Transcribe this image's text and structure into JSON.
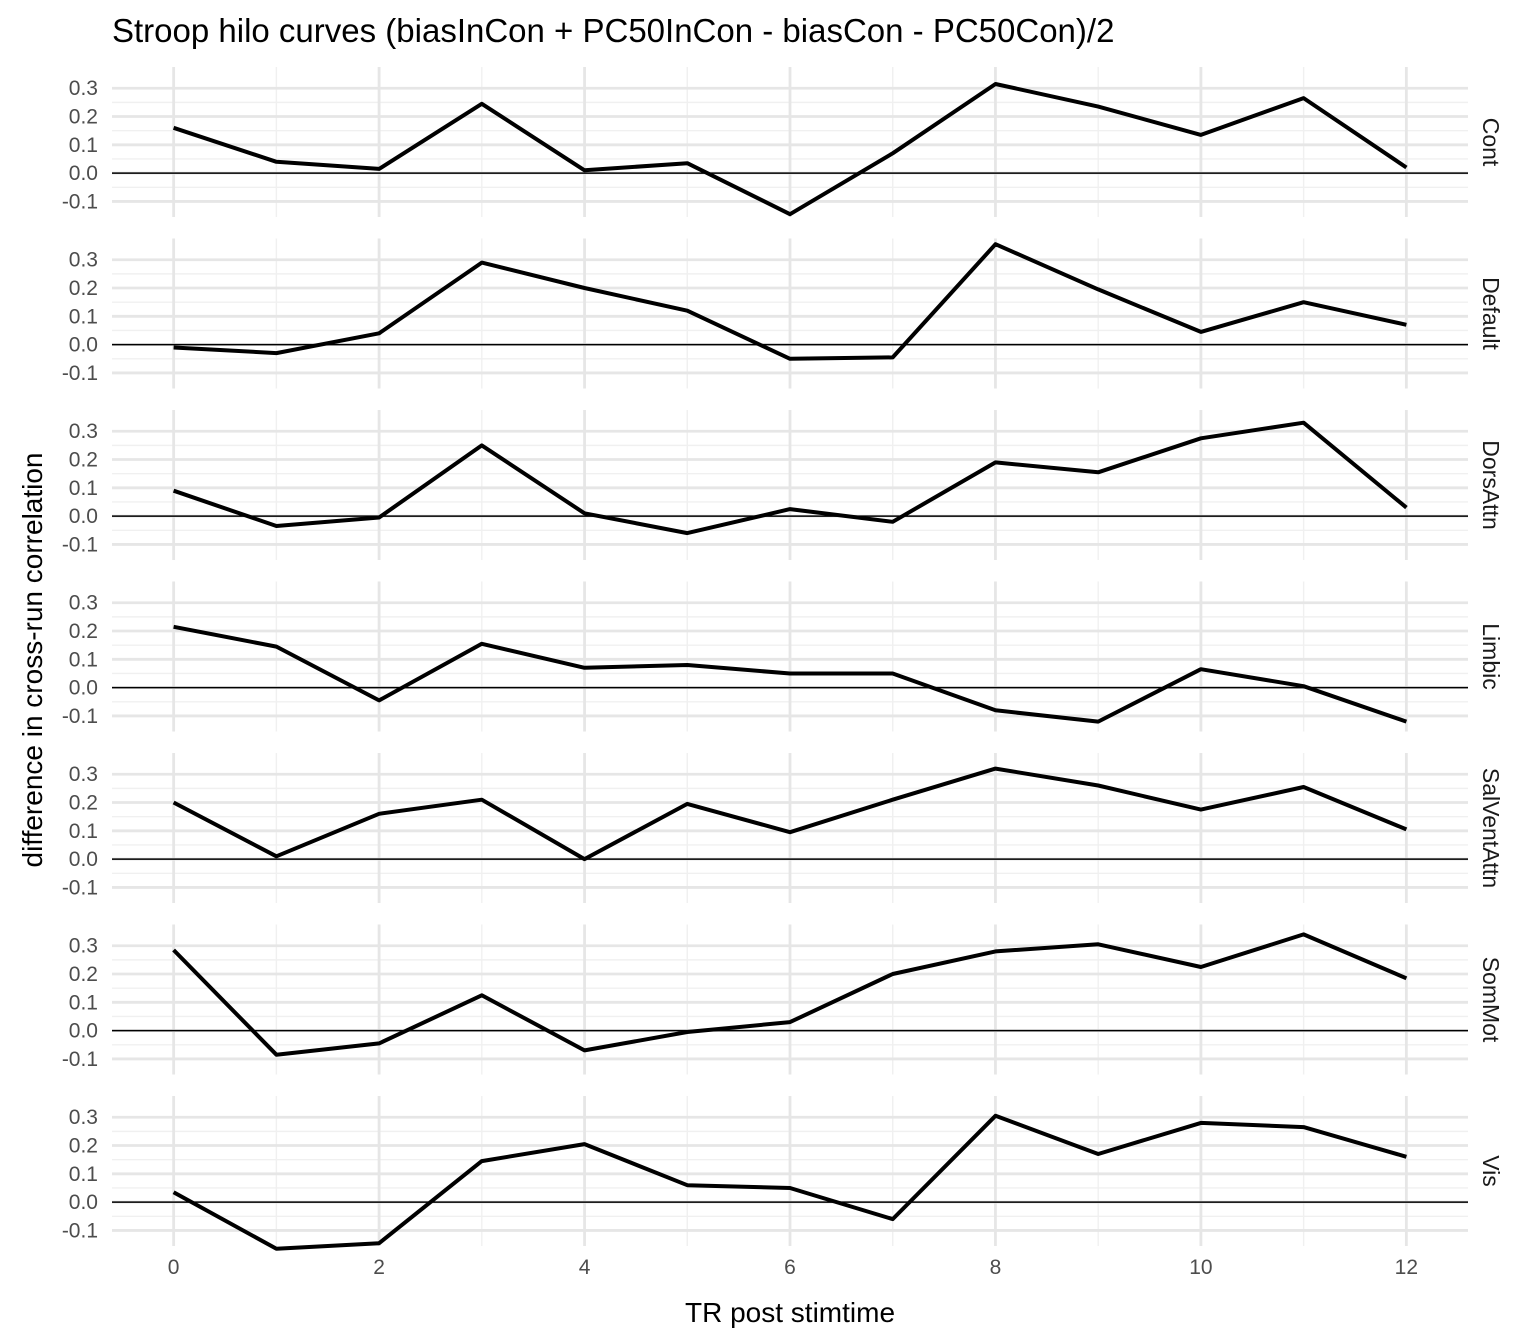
{
  "chart_data": {
    "type": "line",
    "title": "Stroop hilo curves (biasInCon + PC50InCon - biasCon - PC50Con)/2",
    "xlabel": "TR post stimtime",
    "ylabel": "difference in cross-run correlation",
    "x": [
      0,
      1,
      2,
      3,
      4,
      5,
      6,
      7,
      8,
      9,
      10,
      11,
      12
    ],
    "xlim": [
      -0.6,
      12.6
    ],
    "x_ticks": [
      "0",
      "2",
      "4",
      "6",
      "8",
      "10",
      "12"
    ],
    "x_tick_values": [
      0,
      2,
      4,
      6,
      8,
      10,
      12
    ],
    "ylim": [
      -0.155,
      0.375
    ],
    "y_ticks": [
      "-0.1",
      "0.0",
      "0.1",
      "0.2",
      "0.3"
    ],
    "y_tick_values": [
      -0.1,
      0.0,
      0.1,
      0.2,
      0.3
    ],
    "reference_line": 0,
    "grid": true,
    "line_color": "#000000",
    "panels": [
      {
        "name": "Cont",
        "values": [
          0.16,
          0.04,
          0.015,
          0.245,
          0.01,
          0.035,
          -0.145,
          0.07,
          0.315,
          0.235,
          0.135,
          0.265,
          0.02
        ]
      },
      {
        "name": "Default",
        "values": [
          -0.01,
          -0.03,
          0.04,
          0.29,
          0.2,
          0.12,
          -0.05,
          -0.045,
          0.355,
          0.195,
          0.045,
          0.15,
          0.07
        ]
      },
      {
        "name": "DorsAttn",
        "values": [
          0.09,
          -0.035,
          -0.005,
          0.25,
          0.01,
          -0.06,
          0.025,
          -0.02,
          0.19,
          0.155,
          0.275,
          0.33,
          0.03
        ]
      },
      {
        "name": "Limbic",
        "values": [
          0.215,
          0.145,
          -0.045,
          0.155,
          0.07,
          0.08,
          0.05,
          0.05,
          -0.08,
          -0.12,
          0.065,
          0.005,
          -0.12
        ]
      },
      {
        "name": "SalVentAttn",
        "values": [
          0.2,
          0.01,
          0.16,
          0.21,
          0.0,
          0.195,
          0.095,
          0.21,
          0.32,
          0.26,
          0.175,
          0.255,
          0.105
        ]
      },
      {
        "name": "SomMot",
        "values": [
          0.285,
          -0.085,
          -0.045,
          0.125,
          -0.07,
          -0.005,
          0.03,
          0.2,
          0.28,
          0.305,
          0.225,
          0.34,
          0.185
        ]
      },
      {
        "name": "Vis",
        "values": [
          0.035,
          -0.165,
          -0.145,
          0.145,
          0.205,
          0.06,
          0.05,
          -0.06,
          0.305,
          0.17,
          0.28,
          0.265,
          0.16
        ]
      }
    ]
  }
}
